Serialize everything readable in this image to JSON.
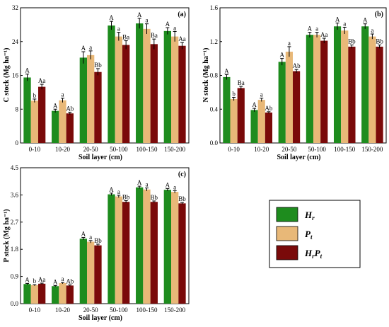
{
  "colors": {
    "Hr": "#1e8c1e",
    "Pt": "#e8b878",
    "HrPt": "#7a0a0a"
  },
  "legend": {
    "placement": "lower-right",
    "entries": [
      {
        "key": "Hr",
        "main": "H",
        "sub": "r",
        "sub2": "",
        "main2": ""
      },
      {
        "key": "Pt",
        "main": "P",
        "sub": "t",
        "sub2": "",
        "main2": ""
      },
      {
        "key": "HrPt",
        "main": "H",
        "sub": "r",
        "main2": "P",
        "sub2": "t"
      }
    ]
  },
  "chart_data": [
    {
      "type": "bar",
      "panel": "(a)",
      "ylabel": "C stock (Mg ha⁻¹)",
      "xlabel": "Soil layer (cm)",
      "categories": [
        "0-10",
        "10-20",
        "20-50",
        "50-100",
        "100-150",
        "150-200"
      ],
      "ylim": [
        0,
        32
      ],
      "yticks": [
        0,
        8,
        16,
        24,
        32
      ],
      "series": [
        {
          "key": "Hr",
          "values": [
            15.5,
            7.6,
            20.2,
            27.8,
            28.3,
            26.5
          ],
          "err": [
            0.8,
            0.4,
            1.4,
            1.0,
            1.2,
            0.8
          ],
          "labels": [
            "A",
            "A",
            "A",
            "A",
            "A",
            "A"
          ]
        },
        {
          "key": "Pt",
          "values": [
            10.0,
            10.1,
            20.8,
            25.2,
            27.0,
            25.2
          ],
          "err": [
            0.4,
            0.5,
            1.0,
            1.0,
            1.2,
            1.2
          ],
          "labels": [
            "b",
            "a",
            "a",
            "a",
            "a",
            "a"
          ]
        },
        {
          "key": "HrPt",
          "values": [
            13.3,
            7.0,
            16.8,
            23.2,
            23.4,
            23.0
          ],
          "err": [
            0.6,
            0.3,
            0.8,
            1.0,
            1.2,
            0.8
          ],
          "labels": [
            "Aa",
            "Ab",
            "Bb",
            "Ba",
            "Ba",
            "Aa"
          ]
        }
      ]
    },
    {
      "type": "bar",
      "panel": "(b)",
      "ylabel": "N stock (Mg ha⁻¹)",
      "xlabel": "Soil layer (cm)",
      "categories": [
        "0-10",
        "10-20",
        "20-50",
        "50-100",
        "100-150",
        "150-200"
      ],
      "ylim": [
        0,
        1.6
      ],
      "yticks": [
        "0.0",
        "0.4",
        "0.8",
        "1.2",
        "1.6"
      ],
      "series": [
        {
          "key": "Hr",
          "values": [
            0.78,
            0.39,
            0.96,
            1.28,
            1.38,
            1.38
          ],
          "err": [
            0.03,
            0.02,
            0.04,
            0.03,
            0.04,
            0.03
          ],
          "labels": [
            "A",
            "A",
            "A",
            "A",
            "A",
            "A"
          ]
        },
        {
          "key": "Pt",
          "values": [
            0.52,
            0.51,
            1.08,
            1.28,
            1.33,
            1.26
          ],
          "err": [
            0.02,
            0.02,
            0.06,
            0.03,
            0.04,
            0.03
          ],
          "labels": [
            "b",
            "a",
            "a",
            "a",
            "a",
            "a"
          ]
        },
        {
          "key": "HrPt",
          "values": [
            0.65,
            0.36,
            0.85,
            1.21,
            1.14,
            1.14
          ],
          "err": [
            0.02,
            0.01,
            0.02,
            0.03,
            0.02,
            0.02
          ],
          "labels": [
            "Ba",
            "Ab",
            "Ab",
            "Aa",
            "Bb",
            "Bb"
          ]
        }
      ]
    },
    {
      "type": "bar",
      "panel": "(c)",
      "ylabel": "P stock (Mg ha⁻¹)",
      "xlabel": "Soil layer (cm)",
      "categories": [
        "0-10",
        "10-20",
        "20-50",
        "50-100",
        "100-150",
        "150-200"
      ],
      "ylim": [
        0,
        4.5
      ],
      "yticks": [
        "0.0",
        "0.9",
        "1.8",
        "2.7",
        "3.6",
        "4.5"
      ],
      "series": [
        {
          "key": "Hr",
          "values": [
            0.65,
            0.58,
            2.15,
            3.62,
            3.85,
            3.77
          ],
          "err": [
            0.02,
            0.02,
            0.04,
            0.04,
            0.04,
            0.04
          ],
          "labels": [
            "A",
            "A",
            "A",
            "A",
            "A",
            "A"
          ]
        },
        {
          "key": "Pt",
          "values": [
            0.61,
            0.68,
            2.05,
            3.55,
            3.78,
            3.7
          ],
          "err": [
            0.02,
            0.02,
            0.04,
            0.04,
            0.05,
            0.04
          ],
          "labels": [
            "b",
            "a",
            "a",
            "a",
            "a",
            "a"
          ]
        },
        {
          "key": "HrPt",
          "values": [
            0.66,
            0.6,
            1.93,
            3.37,
            3.37,
            3.32
          ],
          "err": [
            0.02,
            0.02,
            0.04,
            0.04,
            0.03,
            0.03
          ],
          "labels": [
            "Aa",
            "Ab",
            "Bb",
            "Bb",
            "Bb",
            "Bb"
          ]
        }
      ]
    }
  ]
}
